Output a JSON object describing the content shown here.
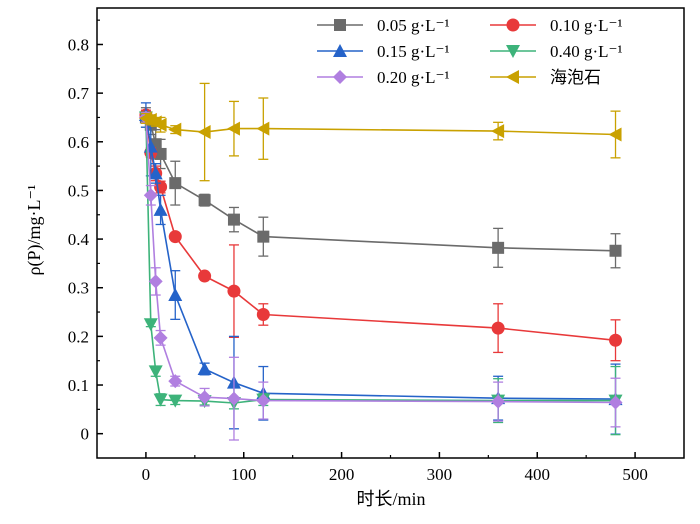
{
  "chart_data": {
    "type": "line",
    "title": "",
    "xlabel": "时长/min",
    "ylabel": "ρ(P)/mg·L⁻¹",
    "xlim": [
      -50,
      550
    ],
    "ylim": [
      -0.05,
      0.875
    ],
    "xticks": [
      0,
      100,
      200,
      300,
      400,
      500
    ],
    "yticks": [
      0,
      0.1,
      0.2,
      0.3,
      0.4,
      0.5,
      0.6,
      0.7,
      0.8
    ],
    "ytick_labels": [
      "0",
      "0.1",
      "0.2",
      "0.3",
      "0.4",
      "0.5",
      "0.6",
      "0.7",
      "0.8"
    ],
    "legend_placement": "top-right",
    "grid": false,
    "series": [
      {
        "name": "0.05 g·L⁻¹",
        "color": "#6b6b6b",
        "marker": "square",
        "x": [
          0,
          5,
          10,
          15,
          30,
          60,
          90,
          120,
          360,
          480
        ],
        "y": [
          0.65,
          0.635,
          0.595,
          0.575,
          0.515,
          0.48,
          0.44,
          0.405,
          0.382,
          0.376
        ],
        "err": [
          0.02,
          0.02,
          0.03,
          0.03,
          0.045,
          0.012,
          0.025,
          0.04,
          0.04,
          0.035
        ]
      },
      {
        "name": "0.10 g·L⁻¹",
        "color": "#e8393a",
        "marker": "circle",
        "x": [
          0,
          5,
          10,
          15,
          30,
          60,
          90,
          120,
          360,
          480
        ],
        "y": [
          0.655,
          0.578,
          0.535,
          0.507,
          0.405,
          0.324,
          0.293,
          0.245,
          0.217,
          0.192
        ],
        "err": [
          0.01,
          0.01,
          0.015,
          0.012,
          0.006,
          0.006,
          0.095,
          0.022,
          0.05,
          0.042
        ]
      },
      {
        "name": "0.15 g·L⁻¹",
        "color": "#2563c9",
        "marker": "triangle-up",
        "x": [
          0,
          5,
          10,
          15,
          30,
          60,
          90,
          120,
          360,
          480
        ],
        "y": [
          0.655,
          0.59,
          0.535,
          0.46,
          0.285,
          0.133,
          0.105,
          0.083,
          0.073,
          0.071
        ],
        "err": [
          0.025,
          0.06,
          0.02,
          0.03,
          0.05,
          0.012,
          0.095,
          0.055,
          0.045,
          0.072
        ]
      },
      {
        "name": "0.40 g·L⁻¹",
        "color": "#3db37a",
        "marker": "triangle-down",
        "x": [
          0,
          5,
          10,
          15,
          30,
          60,
          90,
          120,
          360,
          480
        ],
        "y": [
          0.65,
          0.225,
          0.128,
          0.07,
          0.068,
          0.067,
          0.063,
          0.07,
          0.068,
          0.068
        ],
        "err": [
          0.01,
          0.005,
          0.01,
          0.012,
          0.008,
          0.008,
          0.012,
          0.012,
          0.045,
          0.07
        ]
      },
      {
        "name": "0.20 g·L⁻¹",
        "color": "#b07fe0",
        "marker": "diamond",
        "x": [
          0,
          5,
          10,
          15,
          30,
          60,
          90,
          120,
          360,
          480
        ],
        "y": [
          0.65,
          0.49,
          0.313,
          0.197,
          0.108,
          0.075,
          0.072,
          0.068,
          0.066,
          0.064
        ],
        "err": [
          0.01,
          0.02,
          0.028,
          0.015,
          0.01,
          0.018,
          0.085,
          0.038,
          0.04,
          0.05
        ]
      },
      {
        "name": "海泡石",
        "color": "#c9a100",
        "marker": "triangle-left",
        "x": [
          0,
          5,
          10,
          15,
          30,
          60,
          90,
          120,
          360,
          480
        ],
        "y": [
          0.648,
          0.645,
          0.64,
          0.635,
          0.625,
          0.62,
          0.627,
          0.627,
          0.622,
          0.615
        ],
        "err": [
          0.01,
          0.01,
          0.008,
          0.015,
          0.008,
          0.1,
          0.056,
          0.063,
          0.018,
          0.048
        ]
      }
    ],
    "legend_order": [
      0,
      1,
      2,
      3,
      4,
      5
    ]
  }
}
